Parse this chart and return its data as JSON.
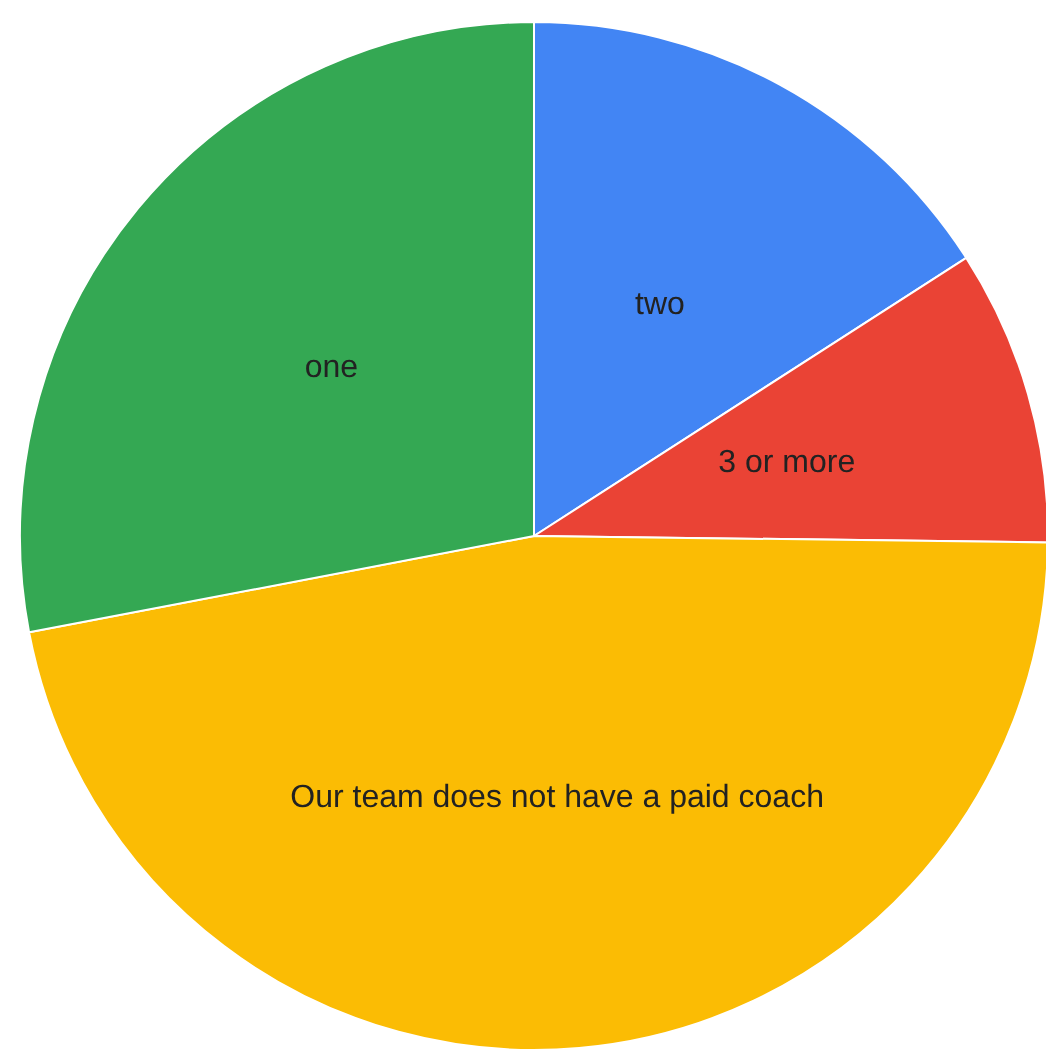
{
  "chart_data": {
    "type": "pie",
    "categories": [
      "two",
      "3 or more",
      "Our team does not have a paid coach",
      "one"
    ],
    "values": [
      15.9,
      9.3,
      46.8,
      28.0
    ],
    "colors": [
      "#4285f4",
      "#ea4335",
      "#fbbc04",
      "#34a853"
    ],
    "legend": false
  }
}
